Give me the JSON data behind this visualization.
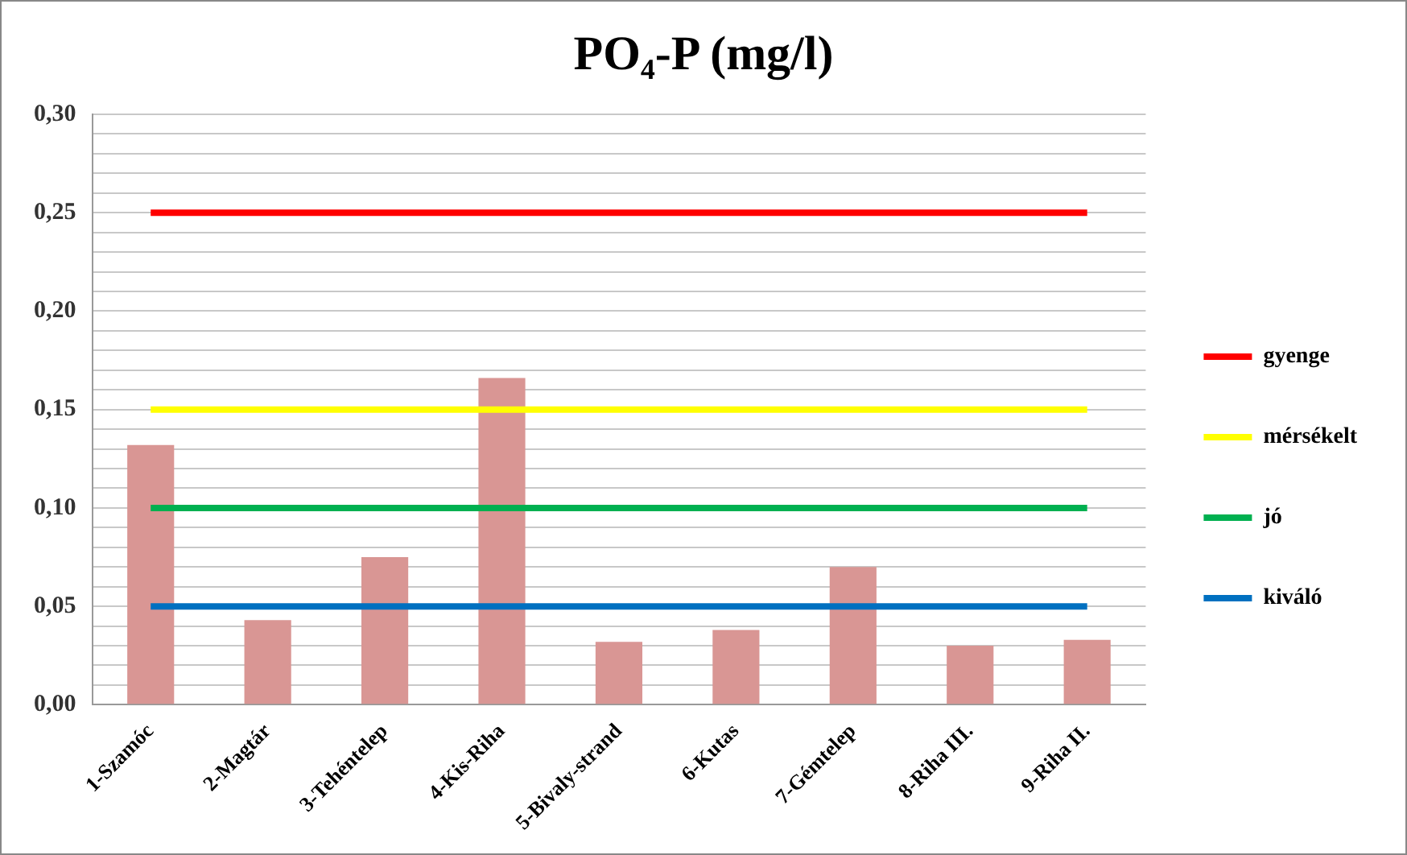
{
  "chart_data": {
    "type": "bar",
    "title": "PO₄-P (mg/l)",
    "categories": [
      "1-Szamóc",
      "2-Magtár",
      "3-Tehéntelep",
      "4-Kis-Riha",
      "5-Bivaly-strand",
      "6-Kutas",
      "7-Gémtelep",
      "8-Riha III.",
      "9-Riha II."
    ],
    "series": [
      {
        "color": "#d99694",
        "values": [
          0.132,
          0.043,
          0.075,
          0.166,
          0.032,
          0.038,
          0.07,
          0.03,
          0.033
        ]
      },
      {
        "type": "line",
        "name": "gyenge",
        "color": "#ff0000",
        "values": [
          0.25,
          0.25,
          0.25,
          0.25,
          0.25,
          0.25,
          0.25,
          0.25,
          0.25
        ]
      },
      {
        "type": "line",
        "name": "mérsékelt",
        "color": "#ffff00",
        "values": [
          0.15,
          0.15,
          0.15,
          0.15,
          0.15,
          0.15,
          0.15,
          0.15,
          0.15
        ]
      },
      {
        "type": "line",
        "name": "jó",
        "color": "#00b050",
        "values": [
          0.1,
          0.1,
          0.1,
          0.1,
          0.1,
          0.1,
          0.1,
          0.1,
          0.1
        ]
      },
      {
        "type": "line",
        "name": "kiváló",
        "color": "#0070c0",
        "values": [
          0.05,
          0.05,
          0.05,
          0.05,
          0.05,
          0.05,
          0.05,
          0.05,
          0.05
        ]
      }
    ],
    "ylim": [
      0,
      0.3
    ],
    "yticks": [
      {
        "value": 0,
        "label": "0,00"
      },
      {
        "value": 0.01,
        "label": null
      },
      {
        "value": 0.02,
        "label": null
      },
      {
        "value": 0.03,
        "label": null
      },
      {
        "value": 0.04,
        "label": null
      },
      {
        "value": 0.05,
        "label": "0,05"
      },
      {
        "value": 0.06,
        "label": null
      },
      {
        "value": 0.07,
        "label": null
      },
      {
        "value": 0.08,
        "label": null
      },
      {
        "value": 0.09,
        "label": null
      },
      {
        "value": 0.1,
        "label": "0,10"
      },
      {
        "value": 0.11,
        "label": null
      },
      {
        "value": 0.12,
        "label": null
      },
      {
        "value": 0.13,
        "label": null
      },
      {
        "value": 0.14,
        "label": null
      },
      {
        "value": 0.15,
        "label": "0,15"
      },
      {
        "value": 0.16,
        "label": null
      },
      {
        "value": 0.17,
        "label": null
      },
      {
        "value": 0.18,
        "label": null
      },
      {
        "value": 0.19,
        "label": null
      },
      {
        "value": 0.2,
        "label": "0,20"
      },
      {
        "value": 0.21,
        "label": null
      },
      {
        "value": 0.22,
        "label": null
      },
      {
        "value": 0.23,
        "label": null
      },
      {
        "value": 0.24,
        "label": null
      },
      {
        "value": 0.25,
        "label": "0,25"
      },
      {
        "value": 0.26,
        "label": null
      },
      {
        "value": 0.27,
        "label": null
      },
      {
        "value": 0.28,
        "label": null
      },
      {
        "value": 0.29,
        "label": null
      },
      {
        "value": 0.3,
        "label": "0,30"
      }
    ],
    "grid": "y",
    "legend": "right",
    "marker": "none",
    "line_style": "solid"
  }
}
